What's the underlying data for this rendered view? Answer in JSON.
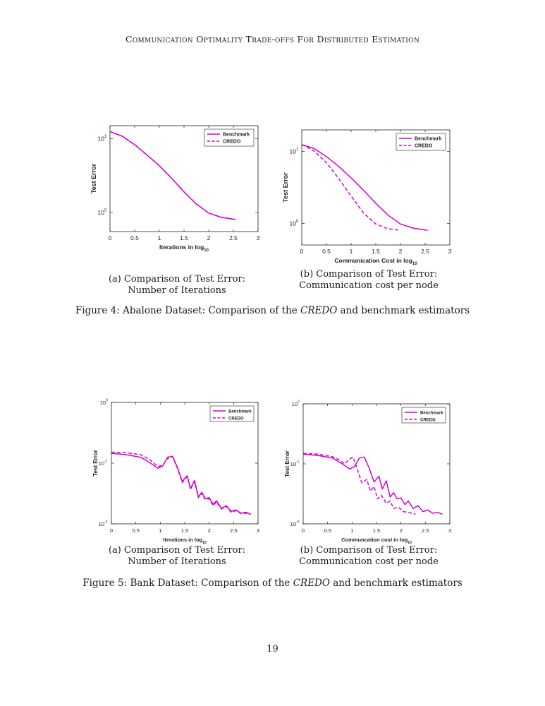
{
  "running_head": "Communication Optimality Trade-offs For Distributed Estimation",
  "page_number": "19",
  "figures": [
    {
      "caption_prefix": "Figure 4: Abalone Dataset: Comparison of the ",
      "caption_credo": "CREDO",
      "caption_suffix": " and benchmark estimators",
      "subcaptions": [
        "(a) Comparison of Test Error: Number of Iterations",
        "(b) Comparison of Test Error: Communication cost per node"
      ]
    },
    {
      "caption_prefix": "Figure 5: Bank Dataset: Comparison of the ",
      "caption_credo": "CREDO",
      "caption_suffix": " and benchmark estimators",
      "subcaptions": [
        "(a) Comparison of Test Error: Number of Iterations",
        "(b) Comparison of Test Error: Communication cost per node"
      ]
    }
  ],
  "chart_data": [
    {
      "type": "line",
      "xlabel": "Iterations in log10",
      "ylabel": "Test Error",
      "xlim": [
        0,
        3
      ],
      "ylim": [
        0.55,
        15
      ],
      "log_y": true,
      "xticks": [
        "0",
        "0.5",
        "1",
        "1.5",
        "2",
        "2.5",
        "3"
      ],
      "yticks": [
        {
          "v": 10,
          "label": "10",
          "exp": "1"
        },
        {
          "v": 1,
          "label": "10",
          "exp": "0"
        }
      ],
      "legend": [
        "Benchmark",
        "CREDO"
      ],
      "legend_position": "top-right",
      "color": "#d400d4",
      "series": [
        {
          "name": "Benchmark",
          "style": "solid",
          "x": [
            0,
            0.25,
            0.5,
            0.75,
            1.0,
            1.25,
            1.5,
            1.75,
            2.0,
            2.25,
            2.55
          ],
          "y": [
            12.5,
            10.8,
            8.3,
            6.0,
            4.3,
            2.9,
            1.9,
            1.3,
            0.98,
            0.86,
            0.8
          ]
        },
        {
          "name": "CREDO",
          "style": "dashed",
          "x": [
            0,
            0.25,
            0.5,
            0.75,
            1.0,
            1.25,
            1.5,
            1.75,
            2.0,
            2.25,
            2.55
          ],
          "y": [
            12.5,
            10.8,
            8.3,
            6.0,
            4.3,
            2.9,
            1.9,
            1.3,
            0.98,
            0.86,
            0.8
          ]
        }
      ]
    },
    {
      "type": "line",
      "xlabel": "Communication Cost in log10",
      "ylabel": "Test Error",
      "xlim": [
        0,
        3
      ],
      "ylim": [
        0.5,
        20
      ],
      "log_y": true,
      "xticks": [
        "0",
        "0.5",
        "1",
        "1.5",
        "2",
        "2.5",
        "3"
      ],
      "yticks": [
        {
          "v": 10,
          "label": "10",
          "exp": "1"
        },
        {
          "v": 1,
          "label": "10",
          "exp": "0"
        }
      ],
      "legend": [
        "Benchmark",
        "CREDO"
      ],
      "legend_position": "top-right",
      "color": "#d400d4",
      "series": [
        {
          "name": "Benchmark",
          "style": "solid",
          "x": [
            0,
            0.25,
            0.5,
            0.75,
            1.0,
            1.25,
            1.5,
            1.75,
            2.0,
            2.25,
            2.55
          ],
          "y": [
            12.5,
            11.0,
            8.5,
            6.2,
            4.3,
            2.9,
            1.9,
            1.3,
            0.98,
            0.86,
            0.8
          ]
        },
        {
          "name": "CREDO",
          "style": "dashed",
          "x": [
            0,
            0.25,
            0.5,
            0.75,
            1.0,
            1.25,
            1.5,
            1.75,
            2.0
          ],
          "y": [
            12.5,
            10.2,
            7.0,
            4.2,
            2.4,
            1.4,
            0.98,
            0.84,
            0.8
          ]
        }
      ]
    },
    {
      "type": "line",
      "xlabel": "Iterations in log10",
      "ylabel": "Test Error",
      "xlim": [
        0,
        3
      ],
      "ylim": [
        0.01,
        1
      ],
      "log_y": true,
      "xticks": [
        "0",
        "0.5",
        "1",
        "1.5",
        "2",
        "2.5",
        "3"
      ],
      "yticks": [
        {
          "v": 1,
          "label": "10",
          "exp": "0"
        },
        {
          "v": 0.1,
          "label": "10",
          "exp": "-1"
        },
        {
          "v": 0.01,
          "label": "10",
          "exp": "-2"
        }
      ],
      "legend": [
        "Benchmark",
        "CREDO"
      ],
      "legend_position": "top-right",
      "color": "#d400d4",
      "series": [
        {
          "name": "Benchmark",
          "style": "solid",
          "x": [
            0,
            0.3,
            0.6,
            0.8,
            0.95,
            1.05,
            1.15,
            1.25,
            1.35,
            1.45,
            1.55,
            1.62,
            1.7,
            1.78,
            1.85,
            1.92,
            2.0,
            2.08,
            2.15,
            2.25,
            2.35,
            2.45,
            2.55,
            2.65,
            2.75,
            2.85
          ],
          "y": [
            0.145,
            0.138,
            0.125,
            0.1,
            0.082,
            0.09,
            0.125,
            0.13,
            0.085,
            0.05,
            0.062,
            0.038,
            0.052,
            0.028,
            0.033,
            0.026,
            0.027,
            0.021,
            0.024,
            0.018,
            0.02,
            0.016,
            0.017,
            0.015,
            0.0155,
            0.0145
          ]
        },
        {
          "name": "CREDO",
          "style": "dashed",
          "x": [
            0,
            0.3,
            0.6,
            0.8,
            0.95,
            1.05,
            1.15,
            1.25,
            1.35,
            1.45,
            1.55,
            1.62,
            1.7,
            1.78,
            1.85,
            1.92,
            2.0,
            2.08,
            2.15,
            2.25,
            2.35,
            2.45,
            2.55,
            2.65,
            2.75,
            2.85
          ],
          "y": [
            0.152,
            0.148,
            0.138,
            0.112,
            0.088,
            0.092,
            0.12,
            0.128,
            0.083,
            0.048,
            0.06,
            0.037,
            0.05,
            0.027,
            0.032,
            0.025,
            0.026,
            0.02,
            0.023,
            0.0175,
            0.0195,
            0.0155,
            0.0165,
            0.0148,
            0.015,
            0.0142
          ]
        }
      ]
    },
    {
      "type": "line",
      "xlabel": "Communcation cost in log10",
      "ylabel": "Test Error",
      "xlim": [
        0,
        3
      ],
      "ylim": [
        0.01,
        1
      ],
      "log_y": true,
      "xticks": [
        "0",
        "0.5",
        "1",
        "1.5",
        "2",
        "2.5",
        "3"
      ],
      "yticks": [
        {
          "v": 1,
          "label": "10",
          "exp": "0"
        },
        {
          "v": 0.1,
          "label": "10",
          "exp": "-1"
        },
        {
          "v": 0.01,
          "label": "10",
          "exp": "-2"
        }
      ],
      "legend": [
        "Benchmark",
        "CREDO"
      ],
      "legend_position": "top-right",
      "color": "#d400d4",
      "series": [
        {
          "name": "Benchmark",
          "style": "solid",
          "x": [
            0,
            0.3,
            0.6,
            0.8,
            0.95,
            1.05,
            1.15,
            1.25,
            1.35,
            1.45,
            1.55,
            1.62,
            1.7,
            1.78,
            1.85,
            1.92,
            2.0,
            2.08,
            2.15,
            2.25,
            2.35,
            2.45,
            2.55,
            2.65,
            2.75,
            2.85
          ],
          "y": [
            0.145,
            0.138,
            0.125,
            0.1,
            0.082,
            0.09,
            0.125,
            0.13,
            0.085,
            0.05,
            0.062,
            0.038,
            0.052,
            0.028,
            0.033,
            0.026,
            0.027,
            0.021,
            0.024,
            0.018,
            0.02,
            0.016,
            0.017,
            0.015,
            0.0155,
            0.0145
          ]
        },
        {
          "name": "CREDO",
          "style": "dashed",
          "x": [
            0,
            0.3,
            0.6,
            0.75,
            0.85,
            0.95,
            1.02,
            1.1,
            1.2,
            1.3,
            1.38,
            1.45,
            1.52,
            1.6,
            1.7,
            1.78,
            1.85,
            1.95,
            2.05,
            2.15,
            2.3
          ],
          "y": [
            0.15,
            0.145,
            0.132,
            0.115,
            0.1,
            0.12,
            0.13,
            0.085,
            0.048,
            0.055,
            0.035,
            0.042,
            0.026,
            0.03,
            0.022,
            0.024,
            0.018,
            0.019,
            0.016,
            0.0155,
            0.0145
          ]
        }
      ]
    }
  ]
}
